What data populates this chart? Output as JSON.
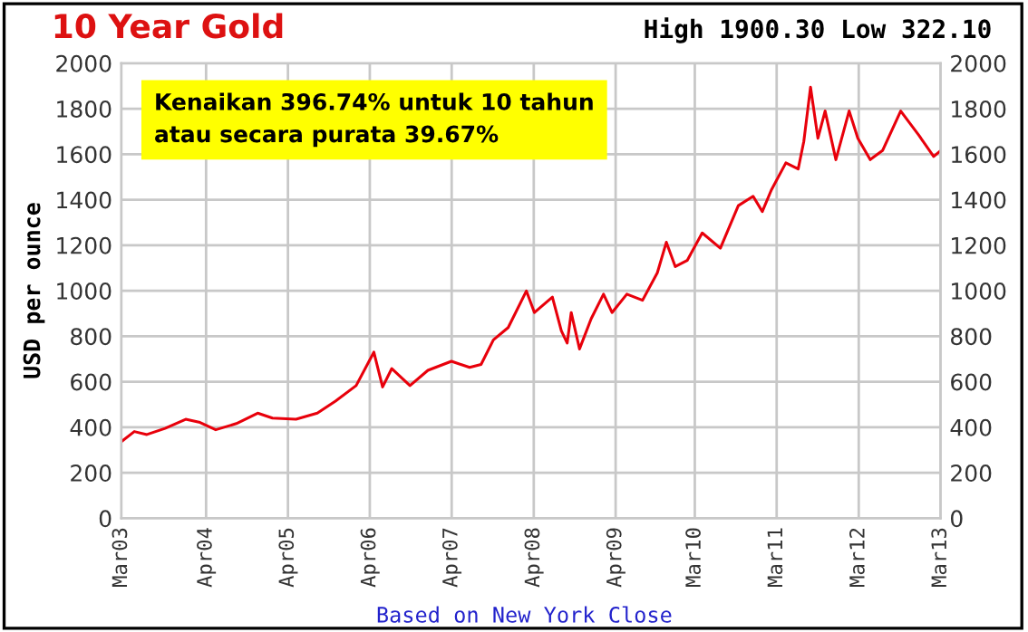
{
  "chart_data": {
    "type": "line",
    "title": "10 Year Gold",
    "subtitle": "High 1900.30 Low 322.10",
    "ylabel": "USD per ounce",
    "annotations": [
      "Kenaikan 396.74% untuk 10 tahun\natau secara purata 39.67%",
      "Based on New York Close"
    ],
    "x": [
      "2003-03-20",
      "2003-05-17",
      "2003-07-12",
      "2003-10-01",
      "2004-01-01",
      "2004-03-05",
      "2004-05-14",
      "2004-08-14",
      "2004-11-17",
      "2005-01-22",
      "2005-05-07",
      "2005-08-10",
      "2005-10-30",
      "2006-01-30",
      "2006-04-19",
      "2006-05-28",
      "2006-07-08",
      "2006-09-27",
      "2006-12-16",
      "2007-03-31",
      "2007-06-20",
      "2007-08-10",
      "2007-10-04",
      "2007-12-09",
      "2008-02-28",
      "2008-04-04",
      "2008-06-23",
      "2008-08-02",
      "2008-08-28",
      "2008-09-15",
      "2008-10-22",
      "2008-12-13",
      "2009-02-06",
      "2009-03-16",
      "2009-05-21",
      "2009-07-30",
      "2009-10-04",
      "2009-11-13",
      "2009-12-23",
      "2010-02-14",
      "2010-04-22",
      "2010-07-12",
      "2010-09-30",
      "2010-12-05",
      "2011-01-15",
      "2011-02-24",
      "2011-04-30",
      "2011-06-24",
      "2011-07-19",
      "2011-08-18",
      "2011-09-20",
      "2011-10-22",
      "2011-12-09",
      "2012-02-06",
      "2012-03-16",
      "2012-05-10",
      "2012-07-04",
      "2012-09-23",
      "2012-12-13",
      "2013-02-17",
      "2013-03-20"
    ],
    "series": [
      {
        "color": "#e8000b",
        "values": [
          336,
          381,
          368,
          395,
          435,
          421,
          389,
          416,
          462,
          440,
          435,
          462,
          515,
          583,
          730,
          577,
          658,
          583,
          650,
          690,
          663,
          676,
          784,
          838,
          999,
          904,
          972,
          824,
          770,
          904,
          744,
          877,
          985,
          904,
          985,
          958,
          1079,
          1213,
          1106,
          1133,
          1254,
          1187,
          1374,
          1415,
          1348,
          1442,
          1562,
          1535,
          1656,
          1895,
          1670,
          1790,
          1576,
          1790,
          1670,
          1576,
          1616,
          1790,
          1683,
          1590,
          1616
        ]
      }
    ],
    "xlim": [
      "2003-03-20",
      "2013-03-20"
    ],
    "xticks": [
      {
        "value": "2003-03-20",
        "label": "Mar03"
      },
      {
        "value": "2004-04-01",
        "label": "Apr04"
      },
      {
        "value": "2005-04-01",
        "label": "Apr05"
      },
      {
        "value": "2006-04-01",
        "label": "Apr06"
      },
      {
        "value": "2007-04-01",
        "label": "Apr07"
      },
      {
        "value": "2008-04-01",
        "label": "Apr08"
      },
      {
        "value": "2009-04-01",
        "label": "Apr09"
      },
      {
        "value": "2010-03-20",
        "label": "Mar10"
      },
      {
        "value": "2011-03-20",
        "label": "Mar11"
      },
      {
        "value": "2012-03-20",
        "label": "Mar12"
      },
      {
        "value": "2013-03-20",
        "label": "Mar13"
      }
    ],
    "ylim": [
      0,
      2000
    ],
    "yticks": [
      0,
      200,
      400,
      600,
      800,
      1000,
      1200,
      1400,
      1600,
      1800,
      2000
    ],
    "y2lim": [
      0,
      2000
    ],
    "y2ticks": [
      0,
      200,
      400,
      600,
      800,
      1000,
      1200,
      1400,
      1600,
      1800,
      2000
    ],
    "grid": true,
    "legend": false,
    "marker": "none",
    "line_style": "solid"
  }
}
